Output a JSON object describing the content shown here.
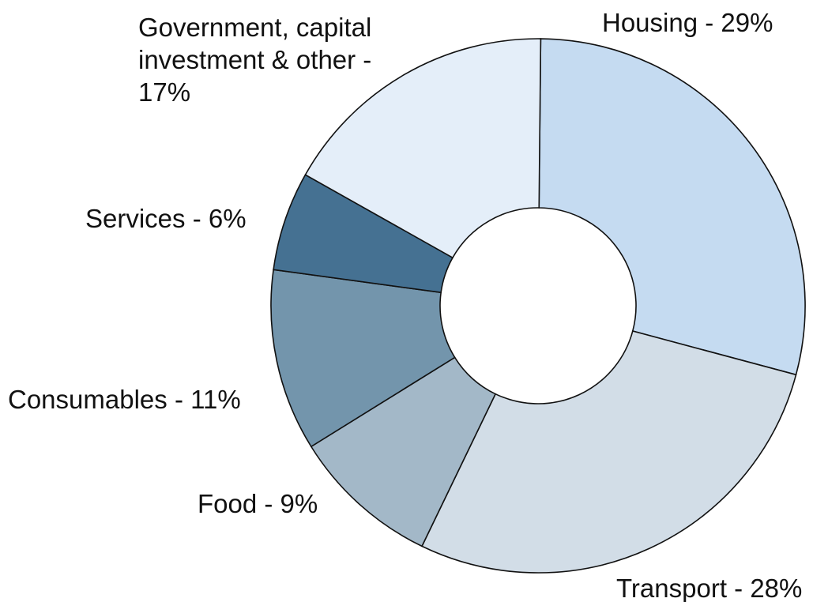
{
  "chart_data": {
    "type": "pie",
    "values": [
      29,
      28,
      9,
      11,
      6,
      17
    ],
    "value_labels": [
      "Housing - 29%",
      "Transport - 28%",
      "Food - 9%",
      "Consumables - 11%",
      "Services - 6%",
      "Government, capital investment & other - 17%"
    ],
    "colors": [
      "#c5dbf1",
      "#d2dde7",
      "#a3b8c8",
      "#7395ac",
      "#457192",
      "#e4eef9"
    ]
  }
}
